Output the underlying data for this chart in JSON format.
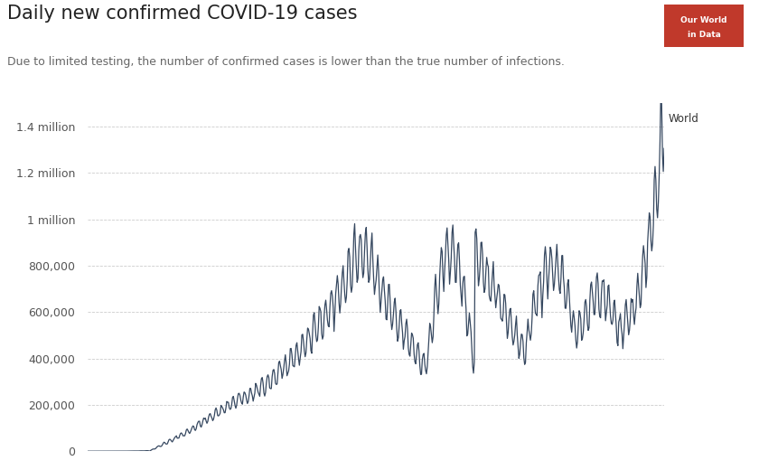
{
  "title": "Daily new confirmed COVID-19 cases",
  "subtitle": "Due to limited testing, the number of confirmed cases is lower than the true number of infections.",
  "line_color": "#364860",
  "background_color": "#ffffff",
  "logo_bg_color": "#c0392b",
  "logo_text_color": "#ffffff",
  "annotation": "World",
  "ytick_labels": [
    "0",
    "200,000",
    "400,000",
    "600,000",
    "800,000",
    "1 million",
    "1.2 million",
    "1.4 million"
  ],
  "ytick_values": [
    0,
    200000,
    400000,
    600000,
    800000,
    1000000,
    1200000,
    1400000
  ],
  "ylim": [
    0,
    1500000
  ],
  "grid_color": "#cccccc",
  "title_fontsize": 15,
  "subtitle_fontsize": 9,
  "tick_fontsize": 9,
  "line_width": 0.9
}
